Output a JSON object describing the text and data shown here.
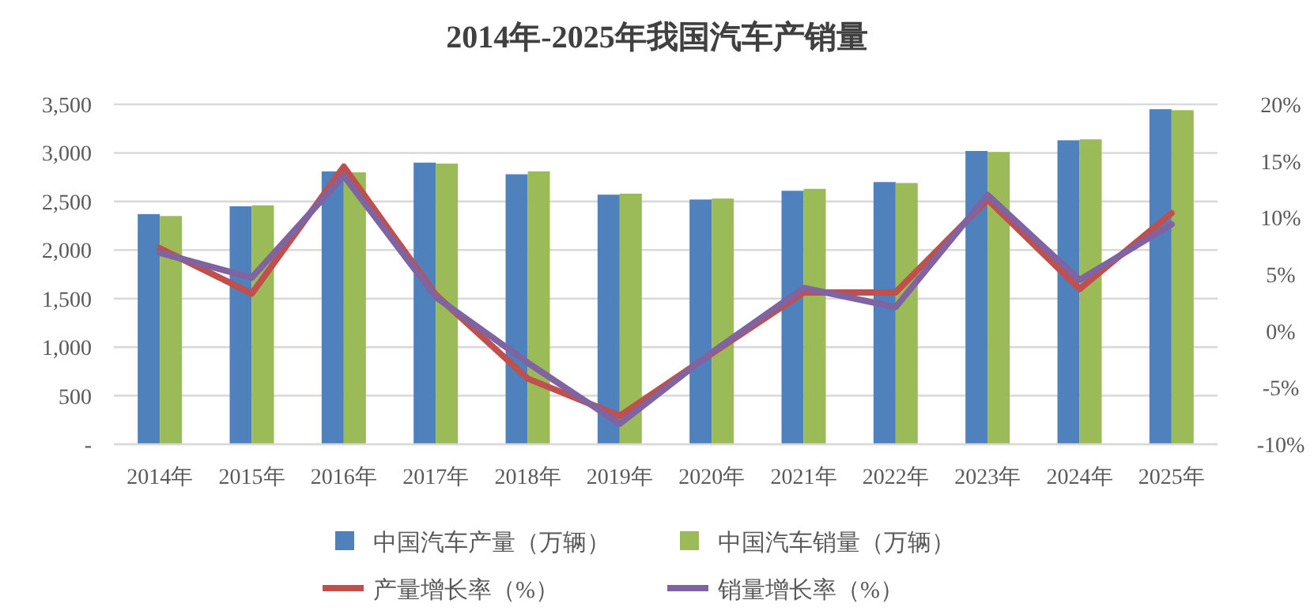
{
  "chart_data": {
    "type": "bar",
    "title": "2014年-2025年我国汽车产销量",
    "categories": [
      "2014年",
      "2015年",
      "2016年",
      "2017年",
      "2018年",
      "2019年",
      "2020年",
      "2021年",
      "2022年",
      "2023年",
      "2024年",
      "2025年"
    ],
    "series": [
      {
        "name": "中国汽车产量（万辆）",
        "color": "#4f81bd",
        "values": [
          2370,
          2450,
          2810,
          2900,
          2780,
          2570,
          2520,
          2610,
          2700,
          3020,
          3130,
          3450
        ]
      },
      {
        "name": "中国汽车销量（万辆）",
        "color": "#9bbb59",
        "values": [
          2350,
          2460,
          2800,
          2890,
          2810,
          2580,
          2530,
          2630,
          2690,
          3010,
          3140,
          3440
        ]
      },
      {
        "name": "产量增长率（%）",
        "type": "line",
        "axis": "y2",
        "color": "#c0504d",
        "values": [
          7.3,
          3.3,
          14.5,
          3.2,
          -4.2,
          -7.5,
          -2.0,
          3.4,
          3.4,
          11.6,
          3.7,
          10.4
        ]
      },
      {
        "name": "销量增长率（%）",
        "type": "line",
        "axis": "y2",
        "color": "#8064a2",
        "values": [
          6.9,
          4.7,
          13.7,
          3.0,
          -2.8,
          -8.2,
          -1.9,
          3.8,
          2.1,
          12.0,
          4.5,
          9.4
        ]
      }
    ],
    "ylim": [
      0,
      3500
    ],
    "yticks": [
      {
        "value": 0,
        "label": "-"
      },
      500,
      {
        "value": 1000,
        "label": "1,000"
      },
      {
        "value": 1500,
        "label": "1,500"
      },
      {
        "value": 2000,
        "label": "2,000"
      },
      {
        "value": 2500,
        "label": "2,500"
      },
      {
        "value": 3000,
        "label": "3,000"
      },
      {
        "value": 3500,
        "label": "3,500"
      }
    ],
    "y2lim": [
      -10,
      20
    ],
    "y2ticks": [
      {
        "value": -10,
        "label": "-10%"
      },
      {
        "value": -5,
        "label": "-5%"
      },
      {
        "value": 0,
        "label": "0%"
      },
      {
        "value": 5,
        "label": "5%"
      },
      {
        "value": 10,
        "label": "10%"
      },
      {
        "value": 15,
        "label": "15%"
      },
      {
        "value": 20,
        "label": "20%"
      }
    ],
    "grid": "y",
    "legend": "bottom"
  }
}
